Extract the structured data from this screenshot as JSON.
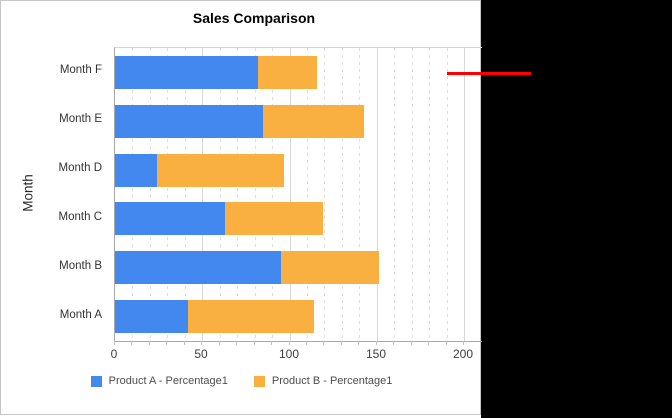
{
  "window": {
    "canvas_background": "#000000"
  },
  "panel": {
    "background": "#FFFFFF",
    "border_color": "#C6C6C6"
  },
  "annotation": {
    "type": "horizontal-line",
    "color": "#FF0000"
  },
  "chart_data": {
    "type": "bar",
    "orientation": "horizontal",
    "stacked": true,
    "title": "Sales Comparison",
    "xlabel": "",
    "ylabel": "Month",
    "categories_order": "top-to-bottom",
    "categories": [
      "Month F",
      "Month E",
      "Month D",
      "Month C",
      "Month B",
      "Month A"
    ],
    "series": [
      {
        "name": "Product A - Percentage1",
        "color": "#4388EE",
        "values": [
          82,
          85,
          24,
          63,
          95,
          42
        ]
      },
      {
        "name": "Product B - Percentage1",
        "color": "#F9B040",
        "values": [
          34,
          58,
          73,
          56,
          56,
          72
        ]
      }
    ],
    "xlim": [
      0,
      210
    ],
    "x_ticks": [
      "0",
      "50",
      "100",
      "150",
      "200"
    ],
    "x_tick_values": [
      0,
      50,
      100,
      150,
      200
    ],
    "minor_grid_step": 10,
    "major_grid_step": 50,
    "grid": true,
    "legend_position": "bottom",
    "colors": {
      "major_grid": "#D8D8D8",
      "minor_grid": "#DEDEDE",
      "axis_line": "#A8A8A8"
    }
  }
}
